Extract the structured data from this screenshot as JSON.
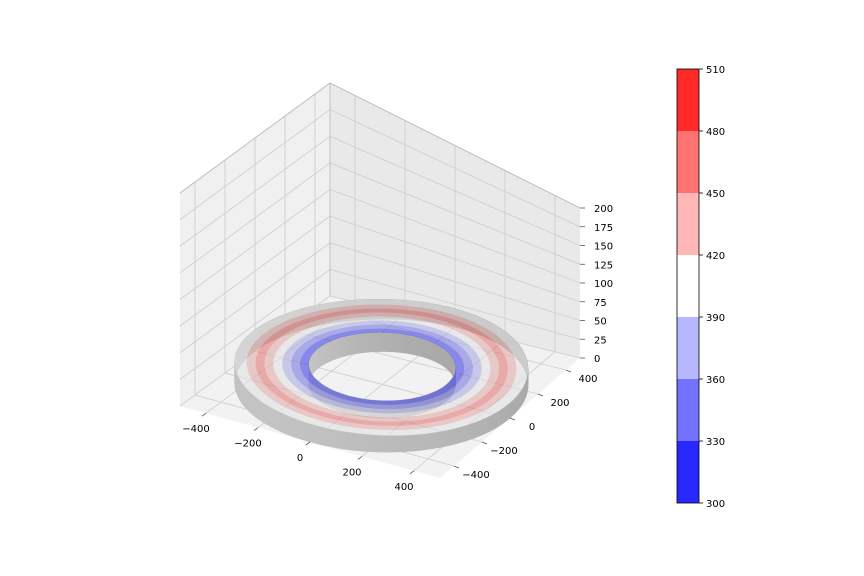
{
  "chart_data": {
    "type": "3d-surface",
    "title": "",
    "xlabel": "",
    "ylabel": "",
    "zlabel": "",
    "x_ticks": [
      "−400",
      "−200",
      "0",
      "200",
      "400"
    ],
    "y_ticks": [
      "−400",
      "−200",
      "0",
      "200",
      "400"
    ],
    "z_ticks": [
      "0",
      "25",
      "50",
      "75",
      "100",
      "125",
      "150",
      "175",
      "200"
    ],
    "xlim": [
      -500,
      500
    ],
    "ylim": [
      -500,
      500
    ],
    "zlim": [
      0,
      200
    ],
    "grid": true,
    "ring": {
      "inner_radius": 250,
      "outer_radius": 500,
      "z_bottom": 0,
      "z_top": 20,
      "top_surface_bands": [
        {
          "r_min": 250,
          "r_max": 280,
          "value": 320
        },
        {
          "r_min": 280,
          "r_max": 310,
          "value": 350
        },
        {
          "r_min": 310,
          "r_max": 340,
          "value": 375
        },
        {
          "r_min": 340,
          "r_max": 370,
          "value": 405
        },
        {
          "r_min": 370,
          "r_max": 400,
          "value": 435
        },
        {
          "r_min": 400,
          "r_max": 430,
          "value": 465
        },
        {
          "r_min": 430,
          "r_max": 460,
          "value": 435
        },
        {
          "r_min": 460,
          "r_max": 500,
          "value": 405
        }
      ],
      "side_color": "#bdbdbd"
    },
    "colorbar": {
      "min": 300,
      "max": 510,
      "ticks": [
        "300",
        "330",
        "360",
        "390",
        "420",
        "450",
        "480",
        "510"
      ],
      "levels": [
        {
          "from": 300,
          "to": 330,
          "color": "#2929ff"
        },
        {
          "from": 330,
          "to": 360,
          "color": "#7272ff"
        },
        {
          "from": 360,
          "to": 390,
          "color": "#b7b7ff"
        },
        {
          "from": 390,
          "to": 420,
          "color": "#ffffff"
        },
        {
          "from": 420,
          "to": 450,
          "color": "#ffb7b7"
        },
        {
          "from": 450,
          "to": 480,
          "color": "#ff7272"
        },
        {
          "from": 480,
          "to": 510,
          "color": "#ff2929"
        }
      ]
    }
  }
}
